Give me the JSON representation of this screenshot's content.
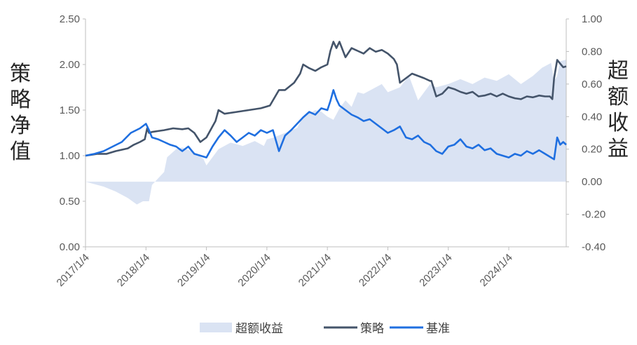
{
  "chart_data": {
    "type": "line",
    "title": "",
    "xlabel": "",
    "ylabel_left": "策略净值",
    "ylabel_right": "超额收益",
    "x_tick_labels": [
      "2017/1/4",
      "2018/1/4",
      "2019/1/4",
      "2020/1/4",
      "2021/1/4",
      "2022/1/4",
      "2023/1/4",
      "2024/1/4"
    ],
    "y_left_ticks": [
      "0.00",
      "0.50",
      "1.00",
      "1.50",
      "2.00",
      "2.50"
    ],
    "y_right_ticks": [
      "-0.40",
      "-0.20",
      "0.00",
      "0.20",
      "0.40",
      "0.60",
      "0.80",
      "1.00"
    ],
    "ylim_left": [
      0,
      2.5
    ],
    "ylim_right": [
      -0.4,
      1.0
    ],
    "x_range": [
      2017.0,
      2024.95
    ],
    "grid": false,
    "legend_position": "bottom",
    "colors": {
      "excess": "#dae3f3",
      "strategy": "#44546a",
      "benchmark": "#1f6fe0"
    },
    "series": [
      {
        "name": "超额收益",
        "kind": "area",
        "axis": "right",
        "x": [
          2017.0,
          2017.1,
          2017.3,
          2017.5,
          2017.7,
          2017.85,
          2017.95,
          2018.05,
          2018.1,
          2018.2,
          2018.3,
          2018.35,
          2018.5,
          2018.6,
          2018.8,
          2018.95,
          2019.0,
          2019.1,
          2019.2,
          2019.4,
          2019.6,
          2019.8,
          2019.95,
          2020.0,
          2020.1,
          2020.3,
          2020.5,
          2020.6,
          2020.8,
          2020.9,
          2021.0,
          2021.1,
          2021.2,
          2021.3,
          2021.4,
          2021.5,
          2021.6,
          2021.8,
          2021.9,
          2022.0,
          2022.2,
          2022.35,
          2022.5,
          2022.7,
          2022.8,
          2023.0,
          2023.2,
          2023.4,
          2023.6,
          2023.8,
          2024.0,
          2024.2,
          2024.4,
          2024.55,
          2024.7,
          2024.75,
          2024.8,
          2024.85,
          2024.95
        ],
        "values": [
          0.0,
          -0.01,
          -0.03,
          -0.06,
          -0.1,
          -0.14,
          -0.12,
          -0.12,
          -0.02,
          0.02,
          0.06,
          0.15,
          0.2,
          0.21,
          0.18,
          0.14,
          0.1,
          0.15,
          0.2,
          0.24,
          0.22,
          0.25,
          0.22,
          0.26,
          0.27,
          0.3,
          0.33,
          0.4,
          0.44,
          0.43,
          0.4,
          0.38,
          0.45,
          0.5,
          0.46,
          0.55,
          0.54,
          0.58,
          0.6,
          0.55,
          0.58,
          0.65,
          0.5,
          0.6,
          0.58,
          0.6,
          0.63,
          0.6,
          0.64,
          0.62,
          0.66,
          0.6,
          0.65,
          0.7,
          0.73,
          0.62,
          0.65,
          0.74,
          0.75
        ]
      },
      {
        "name": "策略",
        "kind": "line",
        "axis": "left",
        "x": [
          2017.0,
          2017.2,
          2017.35,
          2017.5,
          2017.7,
          2017.8,
          2017.9,
          2017.98,
          2018.02,
          2018.05,
          2018.1,
          2018.2,
          2018.3,
          2018.45,
          2018.6,
          2018.7,
          2018.8,
          2018.9,
          2019.0,
          2019.1,
          2019.15,
          2019.2,
          2019.3,
          2019.5,
          2019.7,
          2019.9,
          2020.05,
          2020.2,
          2020.3,
          2020.45,
          2020.55,
          2020.6,
          2020.7,
          2020.8,
          2020.9,
          2021.0,
          2021.05,
          2021.1,
          2021.15,
          2021.2,
          2021.3,
          2021.4,
          2021.5,
          2021.6,
          2021.7,
          2021.8,
          2021.9,
          2022.0,
          2022.1,
          2022.15,
          2022.2,
          2022.4,
          2022.6,
          2022.7,
          2022.72,
          2022.8,
          2022.9,
          2023.0,
          2023.1,
          2023.2,
          2023.3,
          2023.4,
          2023.5,
          2023.6,
          2023.7,
          2023.8,
          2023.9,
          2024.0,
          2024.1,
          2024.2,
          2024.3,
          2024.4,
          2024.5,
          2024.6,
          2024.68,
          2024.72,
          2024.75,
          2024.8,
          2024.9,
          2024.95
        ],
        "values": [
          1.0,
          1.02,
          1.02,
          1.05,
          1.08,
          1.12,
          1.15,
          1.18,
          1.3,
          1.25,
          1.26,
          1.27,
          1.28,
          1.3,
          1.29,
          1.3,
          1.25,
          1.15,
          1.2,
          1.32,
          1.38,
          1.5,
          1.46,
          1.48,
          1.5,
          1.52,
          1.55,
          1.72,
          1.72,
          1.8,
          1.9,
          2.0,
          1.96,
          1.93,
          1.97,
          2.0,
          2.15,
          2.25,
          2.18,
          2.25,
          2.08,
          2.18,
          2.15,
          2.12,
          2.18,
          2.14,
          2.16,
          2.12,
          2.06,
          2.0,
          1.8,
          1.9,
          1.85,
          1.82,
          1.82,
          1.65,
          1.68,
          1.75,
          1.73,
          1.7,
          1.68,
          1.7,
          1.65,
          1.66,
          1.68,
          1.65,
          1.68,
          1.65,
          1.63,
          1.62,
          1.65,
          1.64,
          1.66,
          1.65,
          1.65,
          1.62,
          1.85,
          2.05,
          1.97,
          1.98
        ]
      },
      {
        "name": "基准",
        "kind": "line",
        "axis": "left",
        "x": [
          2017.0,
          2017.15,
          2017.3,
          2017.45,
          2017.6,
          2017.75,
          2017.9,
          2018.0,
          2018.05,
          2018.1,
          2018.2,
          2018.3,
          2018.4,
          2018.5,
          2018.6,
          2018.7,
          2018.8,
          2018.9,
          2019.0,
          2019.1,
          2019.2,
          2019.3,
          2019.4,
          2019.5,
          2019.6,
          2019.7,
          2019.8,
          2019.9,
          2020.0,
          2020.1,
          2020.2,
          2020.3,
          2020.4,
          2020.5,
          2020.6,
          2020.7,
          2020.8,
          2020.9,
          2021.0,
          2021.05,
          2021.1,
          2021.15,
          2021.2,
          2021.3,
          2021.4,
          2021.5,
          2021.6,
          2021.7,
          2021.8,
          2021.9,
          2022.0,
          2022.1,
          2022.2,
          2022.3,
          2022.4,
          2022.5,
          2022.6,
          2022.7,
          2022.8,
          2022.9,
          2023.0,
          2023.1,
          2023.2,
          2023.3,
          2023.4,
          2023.5,
          2023.6,
          2023.7,
          2023.8,
          2023.9,
          2024.0,
          2024.1,
          2024.2,
          2024.3,
          2024.4,
          2024.5,
          2024.6,
          2024.65,
          2024.7,
          2024.75,
          2024.8,
          2024.85,
          2024.9,
          2024.95
        ],
        "values": [
          1.0,
          1.02,
          1.05,
          1.1,
          1.15,
          1.25,
          1.3,
          1.35,
          1.28,
          1.2,
          1.18,
          1.15,
          1.12,
          1.1,
          1.05,
          1.1,
          1.02,
          1.0,
          0.98,
          1.1,
          1.2,
          1.28,
          1.22,
          1.15,
          1.2,
          1.25,
          1.22,
          1.28,
          1.25,
          1.28,
          1.05,
          1.22,
          1.28,
          1.35,
          1.42,
          1.48,
          1.45,
          1.52,
          1.5,
          1.6,
          1.72,
          1.62,
          1.55,
          1.5,
          1.45,
          1.42,
          1.38,
          1.4,
          1.35,
          1.3,
          1.25,
          1.28,
          1.32,
          1.2,
          1.18,
          1.22,
          1.15,
          1.12,
          1.05,
          1.02,
          1.1,
          1.12,
          1.18,
          1.1,
          1.08,
          1.12,
          1.06,
          1.08,
          1.02,
          1.0,
          0.98,
          1.02,
          1.0,
          1.05,
          1.02,
          1.06,
          1.02,
          1.0,
          0.98,
          0.96,
          1.2,
          1.12,
          1.15,
          1.12
        ]
      }
    ]
  }
}
